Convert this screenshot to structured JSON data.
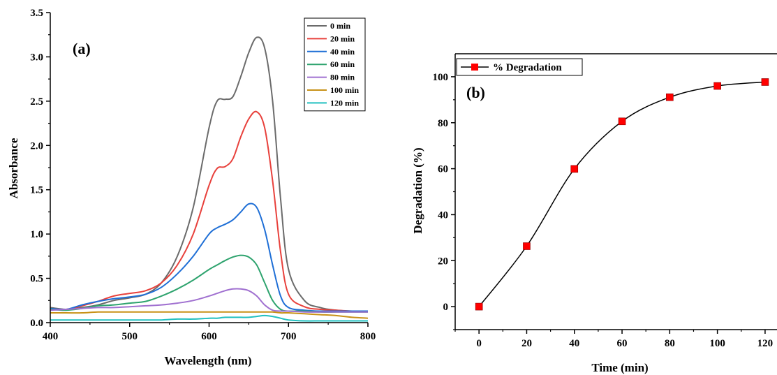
{
  "chart_data": [
    {
      "type": "line",
      "panel_label": "(a)",
      "xlabel": "Wavelength (nm)",
      "ylabel": "Absorbance",
      "xlim": [
        400,
        800
      ],
      "ylim": [
        0,
        3.5
      ],
      "x_ticks": [
        "400",
        "500",
        "600",
        "700",
        "800"
      ],
      "y_ticks": [
        "0.0",
        "0.5",
        "1.0",
        "1.5",
        "2.0",
        "2.5",
        "3.0",
        "3.5"
      ],
      "legend_position": "top-right",
      "x": [
        400,
        420,
        440,
        460,
        480,
        500,
        520,
        540,
        560,
        580,
        600,
        610,
        620,
        630,
        640,
        650,
        660,
        670,
        680,
        690,
        700,
        720,
        740,
        760,
        780,
        800
      ],
      "series": [
        {
          "name": "0 min",
          "color": "#6b6b6b",
          "values": [
            0.17,
            0.15,
            0.17,
            0.2,
            0.25,
            0.28,
            0.32,
            0.45,
            0.75,
            1.3,
            2.2,
            2.5,
            2.52,
            2.55,
            2.78,
            3.05,
            3.22,
            3.1,
            2.5,
            1.4,
            0.6,
            0.25,
            0.17,
            0.14,
            0.13,
            0.13
          ]
        },
        {
          "name": "20 min",
          "color": "#e8413c",
          "values": [
            0.16,
            0.15,
            0.19,
            0.24,
            0.3,
            0.33,
            0.36,
            0.45,
            0.65,
            1.0,
            1.55,
            1.74,
            1.76,
            1.85,
            2.1,
            2.3,
            2.38,
            2.2,
            1.6,
            0.8,
            0.32,
            0.18,
            0.15,
            0.14,
            0.13,
            0.13
          ]
        },
        {
          "name": "40 min",
          "color": "#1f6fd6",
          "values": [
            0.16,
            0.15,
            0.2,
            0.24,
            0.27,
            0.29,
            0.32,
            0.4,
            0.55,
            0.75,
            1.0,
            1.07,
            1.11,
            1.16,
            1.25,
            1.34,
            1.3,
            1.05,
            0.65,
            0.3,
            0.17,
            0.14,
            0.13,
            0.13,
            0.13,
            0.13
          ]
        },
        {
          "name": "60 min",
          "color": "#2ea36e",
          "values": [
            0.15,
            0.14,
            0.16,
            0.19,
            0.2,
            0.22,
            0.24,
            0.3,
            0.38,
            0.48,
            0.6,
            0.65,
            0.7,
            0.74,
            0.76,
            0.74,
            0.65,
            0.45,
            0.25,
            0.15,
            0.13,
            0.13,
            0.12,
            0.12,
            0.12,
            0.12
          ]
        },
        {
          "name": "80 min",
          "color": "#a070d0",
          "values": [
            0.14,
            0.15,
            0.16,
            0.17,
            0.17,
            0.18,
            0.19,
            0.2,
            0.22,
            0.25,
            0.3,
            0.33,
            0.36,
            0.38,
            0.38,
            0.36,
            0.3,
            0.2,
            0.14,
            0.13,
            0.13,
            0.12,
            0.12,
            0.12,
            0.12,
            0.12
          ]
        },
        {
          "name": "100 min",
          "color": "#c89218",
          "values": [
            0.11,
            0.11,
            0.11,
            0.12,
            0.12,
            0.12,
            0.12,
            0.12,
            0.12,
            0.12,
            0.12,
            0.12,
            0.12,
            0.12,
            0.12,
            0.12,
            0.12,
            0.12,
            0.12,
            0.11,
            0.11,
            0.1,
            0.09,
            0.08,
            0.06,
            0.05
          ]
        },
        {
          "name": "120 min",
          "color": "#20c0c0",
          "values": [
            0.03,
            0.03,
            0.03,
            0.03,
            0.03,
            0.03,
            0.03,
            0.03,
            0.04,
            0.04,
            0.05,
            0.05,
            0.06,
            0.06,
            0.06,
            0.06,
            0.07,
            0.08,
            0.07,
            0.05,
            0.03,
            0.02,
            0.02,
            0.02,
            0.02,
            0.02
          ]
        }
      ]
    },
    {
      "type": "line",
      "panel_label": "(b)",
      "xlabel": "Time (min)",
      "ylabel": "Degradation (%)",
      "xlim": [
        -10,
        125
      ],
      "ylim": [
        -10,
        110
      ],
      "x_ticks": [
        "0",
        "20",
        "40",
        "60",
        "80",
        "100",
        "120"
      ],
      "y_ticks": [
        "0",
        "20",
        "40",
        "60",
        "80",
        "100"
      ],
      "legend_position": "top-left",
      "marker_color": "#ff0000",
      "x": [
        0,
        20,
        40,
        60,
        80,
        100,
        120
      ],
      "series": [
        {
          "name": "% Degradation",
          "values": [
            0,
            26.3,
            59.9,
            80.6,
            91.1,
            96.0,
            97.7
          ]
        }
      ]
    }
  ]
}
